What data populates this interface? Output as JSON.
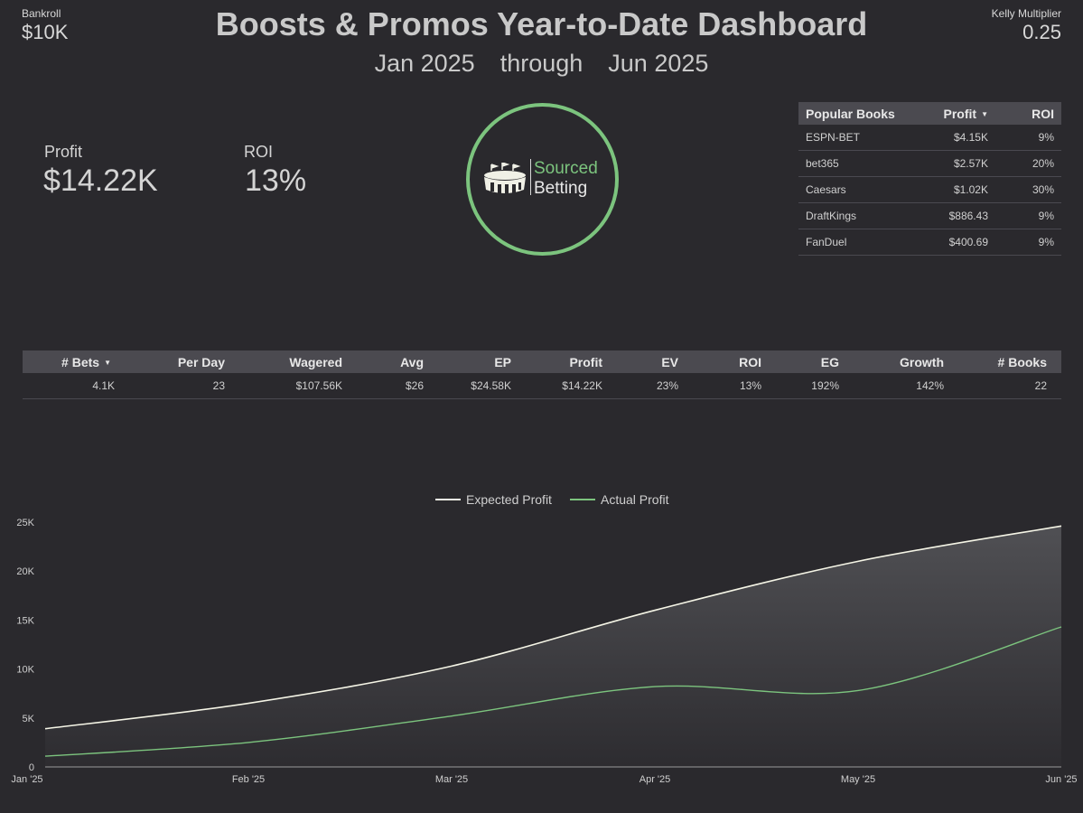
{
  "header": {
    "title": "Boosts & Promos Year-to-Date Dashboard",
    "date_start": "Jan 2025",
    "date_through": "through",
    "date_end": "Jun 2025",
    "bankroll_label": "Bankroll",
    "bankroll_value": "$10K",
    "kelly_label": "Kelly Multiplier",
    "kelly_value": "0.25"
  },
  "kpis": {
    "profit_label": "Profit",
    "profit_value": "$14.22K",
    "roi_label": "ROI",
    "roi_value": "13%"
  },
  "logo": {
    "line1": "Sourced",
    "line2": "Betting",
    "accent": "#7cc47e"
  },
  "books_table": {
    "headers": [
      "Popular Books",
      "Profit",
      "ROI"
    ],
    "sort_icon": "caret-down-icon",
    "rows": [
      [
        "ESPN-BET",
        "$4.15K",
        "9%"
      ],
      [
        "bet365",
        "$2.57K",
        "20%"
      ],
      [
        "Caesars",
        "$1.02K",
        "30%"
      ],
      [
        "DraftKings",
        "$886.43",
        "9%"
      ],
      [
        "FanDuel",
        "$400.69",
        "9%"
      ]
    ]
  },
  "stats_table": {
    "headers": [
      "# Bets",
      "Per Day",
      "Wagered",
      "Avg",
      "EP",
      "Profit",
      "EV",
      "ROI",
      "EG",
      "Growth",
      "# Books"
    ],
    "values": [
      "4.1K",
      "23",
      "$107.56K",
      "$26",
      "$24.58K",
      "$14.22K",
      "23%",
      "13%",
      "192%",
      "142%",
      "22"
    ]
  },
  "chart_data": {
    "type": "area",
    "x": [
      "Jan '25",
      "Feb '25",
      "Mar '25",
      "Apr '25",
      "May '25",
      "Jun '25"
    ],
    "ylim": [
      0,
      25000
    ],
    "yticks": [
      "0",
      "5K",
      "10K",
      "15K",
      "20K",
      "25K"
    ],
    "legend_position": "top-center",
    "grid": false,
    "series": [
      {
        "name": "Expected Profit",
        "color": "#f5f5e6",
        "values": [
          3900,
          6500,
          10300,
          16000,
          21000,
          24600
        ]
      },
      {
        "name": "Actual Profit",
        "color": "#7cc47e",
        "values": [
          1100,
          2500,
          5200,
          8200,
          7800,
          14300
        ]
      }
    ]
  }
}
